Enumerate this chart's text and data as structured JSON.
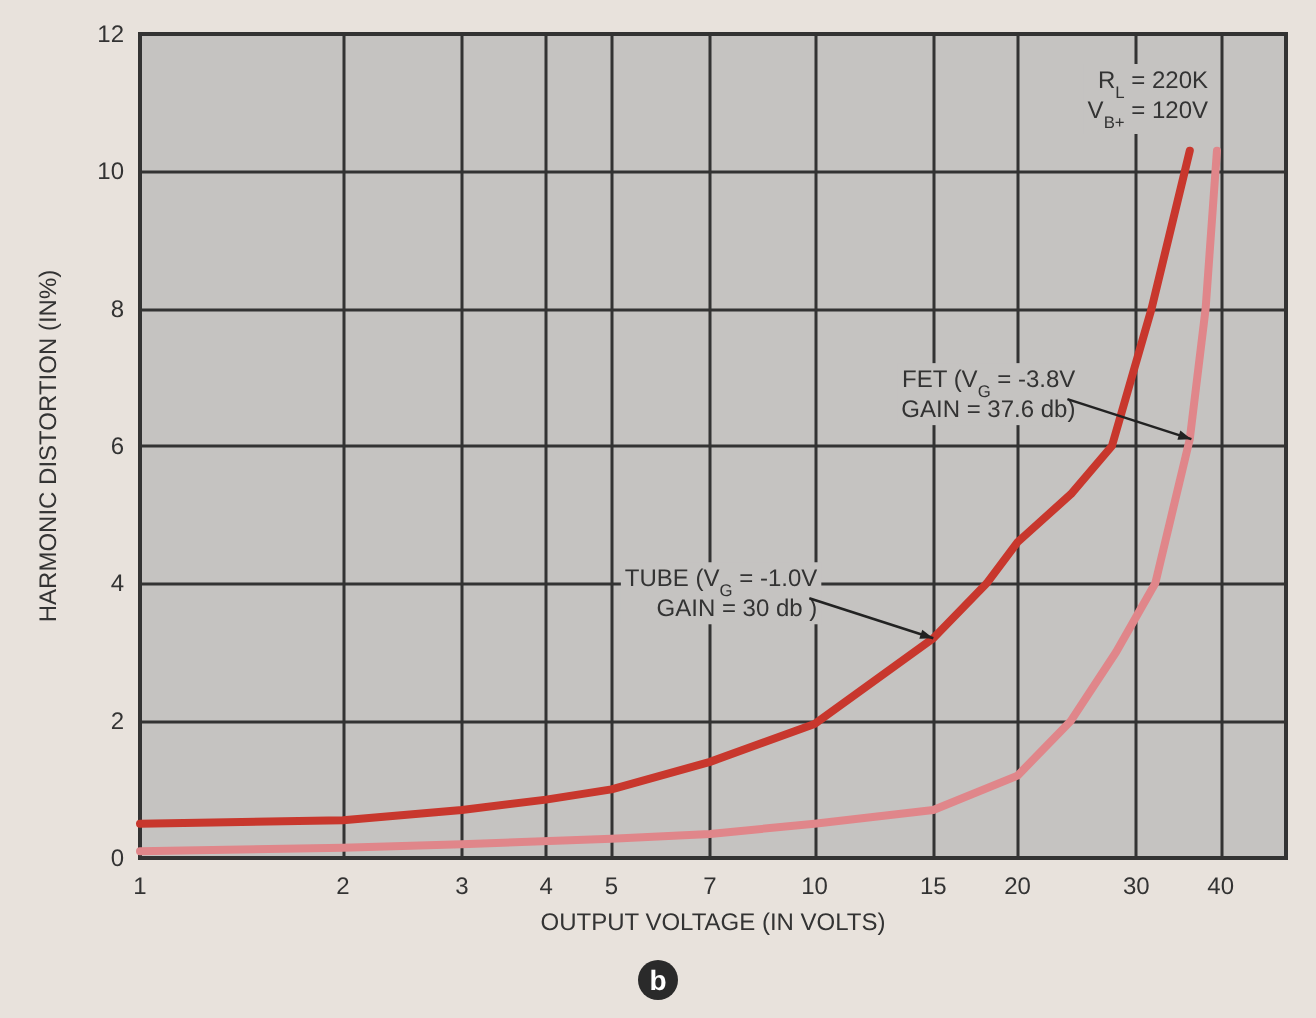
{
  "chart_data": {
    "type": "line",
    "xlabel": "OUTPUT VOLTAGE (IN VOLTS)",
    "ylabel": "HARMONIC DISTORTION (IN%)",
    "x": [
      1,
      2,
      3,
      4,
      5,
      7,
      10,
      15,
      18,
      20,
      24,
      27.6,
      31.6,
      36
    ],
    "series": [
      {
        "color": "#c8372d",
        "values": [
          0.5,
          0.55,
          0.7,
          0.85,
          1.0,
          1.4,
          1.95,
          3.2,
          4,
          4.6,
          5.3,
          6,
          8,
          10.3
        ]
      },
      {
        "color": "#e0868a",
        "x": [
          1,
          2,
          3,
          5,
          7,
          10,
          15,
          20,
          24,
          28,
          32,
          36,
          38,
          39.5
        ],
        "values": [
          0.1,
          0.15,
          0.2,
          0.28,
          0.35,
          0.5,
          0.7,
          1.2,
          2,
          3,
          4,
          6.1,
          8,
          10.3
        ]
      }
    ],
    "xlim": [
      1,
      50
    ],
    "xticks": [
      1,
      2,
      3,
      4,
      5,
      7,
      10,
      15,
      20,
      30,
      40
    ],
    "ylim": [
      0,
      12
    ],
    "yticks": [
      0,
      2,
      4,
      6,
      8,
      10,
      12
    ],
    "log": "x",
    "grid": true,
    "marker": "none",
    "line_style": "solid",
    "annotations": [
      {
        "text": "TUBE (V$_{G}$ = -1.0V\nGAIN = 30 db )",
        "x": 15,
        "y": 3.2
      },
      {
        "text": "FET (V$_{G}$ = -3.8V\nGAIN = 37.6 db)",
        "x": 36.2,
        "y": 6.1
      },
      "R$_{L}$ = 220K\nV$_{B+}$ = 120V",
      "b"
    ]
  }
}
